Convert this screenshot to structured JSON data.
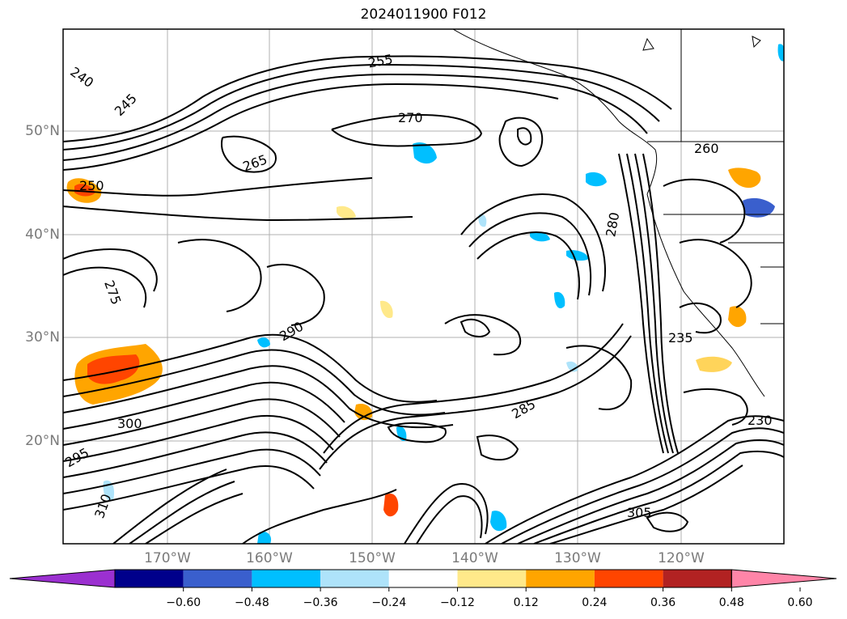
{
  "title": "2024011900 F012",
  "lat_labels": [
    "50°N",
    "40°N",
    "30°N",
    "20°N"
  ],
  "lon_labels": [
    "170°W",
    "160°W",
    "150°W",
    "140°W",
    "130°W",
    "120°W"
  ],
  "contour_labels": [
    "240",
    "245",
    "250",
    "255",
    "260",
    "265",
    "270",
    "275",
    "280",
    "285",
    "290",
    "295",
    "300",
    "305",
    "310",
    "230",
    "235"
  ],
  "colorbar": {
    "colors": [
      "#9b30d0",
      "#00008b",
      "#3a5fcd",
      "#00bfff",
      "#aee3fa",
      "#ffffff",
      "#ffe98a",
      "#ffa500",
      "#ff4500",
      "#b22222",
      "#ff85a8"
    ],
    "ticks": [
      "−0.60",
      "−0.48",
      "−0.36",
      "−0.24",
      "−0.12",
      "0.12",
      "0.24",
      "0.36",
      "0.48",
      "0.60"
    ]
  }
}
